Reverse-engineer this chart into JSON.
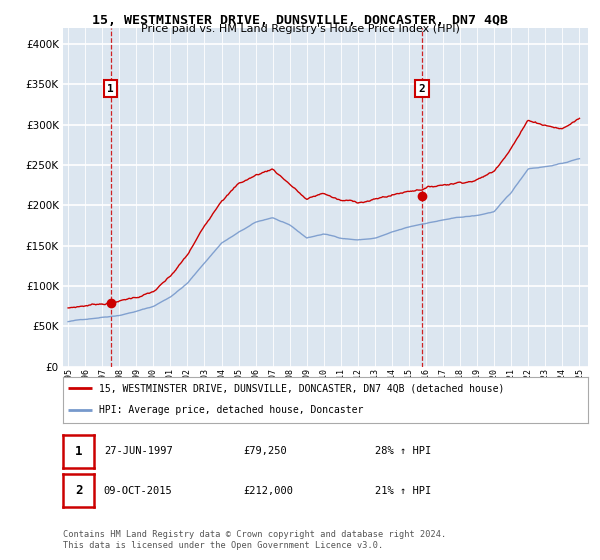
{
  "title": "15, WESTMINSTER DRIVE, DUNSVILLE, DONCASTER, DN7 4QB",
  "subtitle": "Price paid vs. HM Land Registry's House Price Index (HPI)",
  "sale1_date": 1997.49,
  "sale1_price": 79250,
  "sale2_date": 2015.77,
  "sale2_price": 212000,
  "sale1_label": "27-JUN-1997",
  "sale2_label": "09-OCT-2015",
  "sale1_price_str": "£79,250",
  "sale2_price_str": "£212,000",
  "sale1_hpi": "28% ↑ HPI",
  "sale2_hpi": "21% ↑ HPI",
  "red_line_color": "#cc0000",
  "blue_line_color": "#7799cc",
  "dashed_color": "#cc0000",
  "background_color": "#dce6f0",
  "grid_color": "#ffffff",
  "yticks": [
    0,
    50000,
    100000,
    150000,
    200000,
    250000,
    300000,
    350000,
    400000
  ],
  "ylim_max": 420000,
  "xlim_start": 1994.7,
  "xlim_end": 2025.5,
  "legend_line1": "15, WESTMINSTER DRIVE, DUNSVILLE, DONCASTER, DN7 4QB (detached house)",
  "legend_line2": "HPI: Average price, detached house, Doncaster",
  "footnote1": "Contains HM Land Registry data © Crown copyright and database right 2024.",
  "footnote2": "This data is licensed under the Open Government Licence v3.0.",
  "hpi_breakpoints_x": [
    1995,
    1996,
    1997,
    1998,
    1999,
    2000,
    2001,
    2002,
    2003,
    2004,
    2005,
    2006,
    2007,
    2008,
    2009,
    2010,
    2011,
    2012,
    2013,
    2014,
    2015,
    2016,
    2017,
    2018,
    2019,
    2020,
    2021,
    2022,
    2023,
    2024,
    2025
  ],
  "hpi_breakpoints_y": [
    56000,
    59000,
    62000,
    65000,
    70000,
    76000,
    88000,
    105000,
    130000,
    155000,
    168000,
    180000,
    186000,
    176000,
    160000,
    165000,
    160000,
    158000,
    160000,
    167000,
    173000,
    178000,
    182000,
    185000,
    187000,
    192000,
    215000,
    245000,
    248000,
    252000,
    258000
  ],
  "red_breakpoints_x": [
    1995,
    1996,
    1997,
    1998,
    1999,
    2000,
    2001,
    2002,
    2003,
    2004,
    2005,
    2006,
    2007,
    2008,
    2009,
    2010,
    2011,
    2012,
    2013,
    2014,
    2015,
    2016,
    2017,
    2018,
    2019,
    2020,
    2021,
    2022,
    2023,
    2024,
    2025
  ],
  "red_breakpoints_y": [
    73000,
    76000,
    79000,
    82000,
    87000,
    93000,
    110000,
    135000,
    170000,
    205000,
    225000,
    235000,
    243000,
    225000,
    205000,
    212000,
    202000,
    200000,
    203000,
    208000,
    213000,
    218000,
    222000,
    226000,
    230000,
    240000,
    272000,
    305000,
    300000,
    295000,
    308000
  ]
}
